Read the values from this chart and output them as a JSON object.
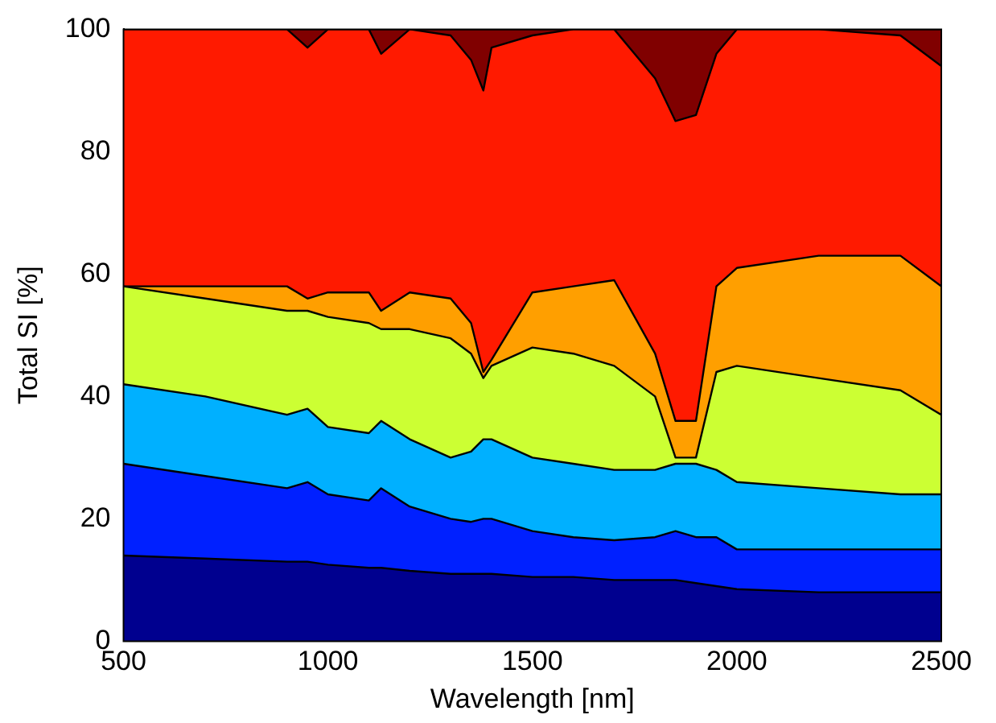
{
  "chart_data": {
    "type": "area",
    "stacked": true,
    "xlabel": "Wavelength [nm]",
    "ylabel": "Total SI [%]",
    "x": [
      500,
      700,
      900,
      950,
      1000,
      1100,
      1130,
      1200,
      1300,
      1350,
      1380,
      1400,
      1500,
      1600,
      1700,
      1800,
      1850,
      1900,
      1950,
      2000,
      2200,
      2400,
      2500
    ],
    "xlim": [
      500,
      2500
    ],
    "xticks": [
      500,
      1000,
      1500,
      2000,
      2500
    ],
    "ylim": [
      0,
      100
    ],
    "yticks": [
      0,
      20,
      40,
      60,
      80,
      100
    ],
    "grid": false,
    "legend": false,
    "series": [
      {
        "color": "#00008f",
        "values": [
          14,
          13.5,
          13,
          13,
          12.5,
          12,
          12,
          11.5,
          11,
          11,
          11,
          11,
          10.5,
          10.5,
          10,
          10,
          10,
          9.5,
          9,
          8.5,
          8,
          8,
          8
        ]
      },
      {
        "color": "#0020ff",
        "values": [
          15,
          13.5,
          12,
          13,
          11.5,
          11,
          13,
          10.5,
          9,
          8.5,
          9,
          9,
          7.5,
          6.5,
          6.5,
          7,
          8,
          7.5,
          8,
          6.5,
          7,
          7,
          7
        ]
      },
      {
        "color": "#00b0ff",
        "values": [
          13,
          13,
          12,
          12,
          11,
          11,
          11,
          11,
          10,
          11.5,
          13,
          13,
          12,
          12,
          11.5,
          11,
          11,
          12,
          11,
          11,
          10,
          9,
          9
        ]
      },
      {
        "color": "#ccff33",
        "values": [
          16,
          16,
          17,
          16,
          18,
          18,
          15,
          18,
          19.5,
          16,
          10,
          12,
          18,
          18,
          17,
          12,
          1,
          1,
          16,
          19,
          18,
          17,
          13
        ]
      },
      {
        "color": "#ff9f00",
        "values": [
          0,
          2,
          4,
          2,
          4,
          5,
          3,
          6,
          6.5,
          5,
          1,
          1,
          9,
          11,
          14,
          7,
          6,
          6,
          14,
          16,
          20,
          22,
          21
        ]
      },
      {
        "color": "#ff1a00",
        "values": [
          42,
          42,
          42,
          41,
          43,
          43,
          42,
          43,
          43,
          43,
          46,
          51,
          42,
          42,
          41,
          45,
          49,
          50,
          38,
          39,
          37,
          36,
          36
        ]
      },
      {
        "color": "#800000",
        "values": [
          0,
          0,
          0,
          3,
          0,
          0,
          4,
          0,
          1,
          5,
          10,
          3,
          1,
          0,
          0,
          8,
          15,
          14,
          4,
          0,
          0,
          1,
          6
        ]
      }
    ]
  }
}
